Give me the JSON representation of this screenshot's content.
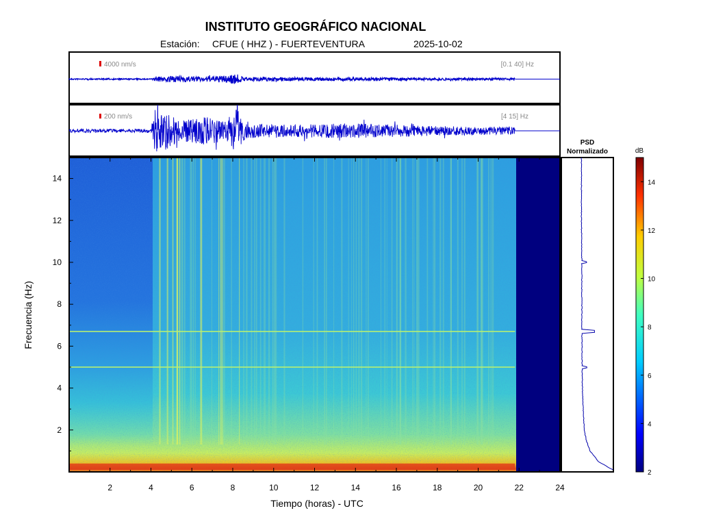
{
  "header": {
    "title": "INSTITUTO GEOGRÁFICO NACIONAL",
    "station_prefix": "Estación:",
    "station": "CFUE ( HHZ ) - FUERTEVENTURA",
    "date": "2025-10-02"
  },
  "panels": {
    "top": {
      "scale": "4000 nm/s",
      "band": "[0.1 40] Hz"
    },
    "middle": {
      "scale": "200 nm/s",
      "band": "[4 15] Hz"
    }
  },
  "psd": {
    "title_line1": "PSD",
    "title_line2": "Normalizado"
  },
  "colorbar": {
    "unit": "dB",
    "ticks": [
      "2",
      "4",
      "6",
      "8",
      "10",
      "12",
      "14"
    ],
    "min": 2,
    "max": 15
  },
  "colors": {
    "scale_marker": "#dd0000",
    "trace": "#0000cc",
    "no_data": "#00007f"
  },
  "chart_data": [
    {
      "type": "line",
      "panel": "seismogram-broadband",
      "label": "[0.1 40] Hz",
      "scale_label": "4000 nm/s",
      "x_range": [
        0,
        24
      ],
      "data_end_hour": 21.8,
      "amplitude_profile_hours": [
        0,
        4,
        4.3,
        5.2,
        6.3,
        7.2,
        8.2,
        8.5,
        21.8
      ],
      "amplitude_profile_relative": [
        0.03,
        0.03,
        0.12,
        0.15,
        0.12,
        0.13,
        0.25,
        0.1,
        0.05
      ]
    },
    {
      "type": "line",
      "panel": "seismogram-filtered",
      "label": "[4 15] Hz",
      "scale_label": "200 nm/s",
      "x_range": [
        0,
        24
      ],
      "data_end_hour": 21.8,
      "amplitude_profile_hours": [
        0,
        4,
        4.2,
        4.8,
        5.4,
        6.3,
        7.0,
        7.6,
        8.3,
        8.6,
        10,
        14,
        18,
        21.8
      ],
      "amplitude_profile_relative": [
        0.07,
        0.07,
        1.0,
        0.75,
        0.4,
        0.55,
        0.6,
        0.35,
        1.0,
        0.3,
        0.25,
        0.3,
        0.2,
        0.15
      ]
    },
    {
      "type": "heatmap",
      "panel": "spectrogram",
      "xlabel": "Tiempo (horas) - UTC",
      "ylabel": "Frecuencia  (Hz)",
      "xlim": [
        0,
        24
      ],
      "ylim": [
        0,
        15
      ],
      "x_ticks": [
        "2",
        "4",
        "6",
        "8",
        "10",
        "12",
        "14",
        "16",
        "18",
        "20",
        "22",
        "24"
      ],
      "y_ticks": [
        "2",
        "4",
        "6",
        "8",
        "10",
        "12",
        "14"
      ],
      "z_unit": "dB",
      "zlim": [
        2,
        15
      ],
      "data_end_hour": 21.8,
      "quiet_period_hours": [
        0,
        4.1
      ],
      "high_energy_band_hz": [
        0.1,
        0.4
      ],
      "spectral_lines_hz": [
        5.0,
        6.7
      ]
    },
    {
      "type": "line",
      "panel": "psd-normalized",
      "title": "PSD Normalizado",
      "frequency_hz": [
        0.1,
        0.5,
        1,
        1.5,
        2,
        3,
        4,
        5,
        6,
        6.7,
        8,
        10,
        12,
        14,
        15
      ],
      "relative_power": [
        1.0,
        0.55,
        0.3,
        0.18,
        0.12,
        0.08,
        0.06,
        0.05,
        0.045,
        0.04,
        0.04,
        0.04,
        0.03,
        0.03,
        0.03
      ],
      "peaks_hz": [
        5.0,
        6.7,
        10.0
      ]
    }
  ]
}
